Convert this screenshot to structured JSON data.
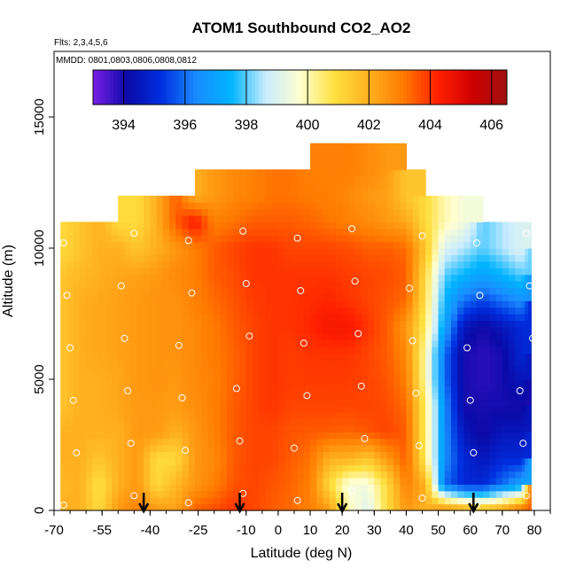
{
  "chart_data": {
    "type": "heatmap",
    "title": "ATOM1 Southbound CO2_AO2",
    "flights_label": "Flts: 2,3,4,5,6",
    "dates_label": "MMDD: 0801,0803,0806,0808,0812",
    "xlabel": "Latitude (deg N)",
    "ylabel": "Altitude (m)",
    "xlim": [
      -70,
      85
    ],
    "ylim": [
      0,
      17500
    ],
    "x_ticks": [
      -70,
      -55,
      -40,
      -25,
      -10,
      0,
      10,
      20,
      30,
      40,
      50,
      60,
      70,
      80
    ],
    "y_ticks": [
      0,
      5000,
      10000,
      15000
    ],
    "colorbar": {
      "min": 393,
      "max": 406.5,
      "ticks": [
        394,
        396,
        398,
        400,
        402,
        404,
        406
      ],
      "colors": [
        "#7a1fe6",
        "#0a0aa8",
        "#0030e0",
        "#1a8cff",
        "#00b4ff",
        "#c8ecff",
        "#ffffd0",
        "#ffe040",
        "#ffb020",
        "#ff7a00",
        "#ff2000",
        "#d00000",
        "#a01010"
      ]
    },
    "latitude_bands": [
      -68,
      -62,
      -56,
      -50,
      -44,
      -38,
      -32,
      -26,
      -20,
      -14,
      -8,
      -2,
      4,
      10,
      16,
      22,
      28,
      34,
      40,
      46,
      52,
      58,
      64,
      70,
      76,
      79
    ],
    "altitude_bands": [
      0,
      1000,
      2000,
      3000,
      4000,
      5000,
      6000,
      7000,
      8000,
      9000,
      10000,
      11000,
      12000,
      13000
    ],
    "co2_grid": [
      [
        402.0,
        402.0,
        401.0,
        402.5,
        403.0,
        402.5,
        402.3,
        403.5,
        403.7,
        404.0,
        403.8,
        403.5,
        403.3,
        403.0,
        402.5,
        400.0,
        399.0,
        401.0,
        402.5,
        402.0,
        403.0,
        402.5,
        402.0,
        402.5,
        403.5
      ],
      [
        401.8,
        402.0,
        400.8,
        402.0,
        402.5,
        401.0,
        401.8,
        402.5,
        403.0,
        403.6,
        403.8,
        403.6,
        403.4,
        403.0,
        401.0,
        399.5,
        399.5,
        401.0,
        403.0,
        402.0,
        396.0,
        395.0,
        395.0,
        396.0,
        397.0
      ],
      [
        402.0,
        402.0,
        401.5,
        402.0,
        402.5,
        401.0,
        401.0,
        402.5,
        402.8,
        403.5,
        403.8,
        403.8,
        403.5,
        403.2,
        402.0,
        402.0,
        401.5,
        402.5,
        403.5,
        400.5,
        396.5,
        395.0,
        394.5,
        395.0,
        395.0
      ],
      [
        402.0,
        402.0,
        402.0,
        402.0,
        402.5,
        402.5,
        402.0,
        402.5,
        403.0,
        403.5,
        403.8,
        403.8,
        403.6,
        403.5,
        403.5,
        403.4,
        403.6,
        403.8,
        403.5,
        400.5,
        396.5,
        394.5,
        394.0,
        394.5,
        394.5
      ],
      [
        401.5,
        402.0,
        402.0,
        402.2,
        402.5,
        402.5,
        402.4,
        402.7,
        403.0,
        403.5,
        403.8,
        404.0,
        403.8,
        403.8,
        403.8,
        403.8,
        403.8,
        403.7,
        403.3,
        400.5,
        396.5,
        394.0,
        394.0,
        394.0,
        394.0
      ],
      [
        401.5,
        402.0,
        402.0,
        402.2,
        402.5,
        402.6,
        402.5,
        402.8,
        403.0,
        403.4,
        403.8,
        404.0,
        403.9,
        403.9,
        403.9,
        403.9,
        403.8,
        403.6,
        403.0,
        400.0,
        396.0,
        394.0,
        393.8,
        394.0,
        394.5
      ],
      [
        401.5,
        402.0,
        402.2,
        402.3,
        402.5,
        402.6,
        402.6,
        402.8,
        403.1,
        403.4,
        403.8,
        404.0,
        403.9,
        404.0,
        404.0,
        404.0,
        403.8,
        403.5,
        402.8,
        400.0,
        396.0,
        394.0,
        393.8,
        394.0,
        395.0
      ],
      [
        401.5,
        402.0,
        402.2,
        402.3,
        402.5,
        402.6,
        402.6,
        402.8,
        403.1,
        403.5,
        403.8,
        404.0,
        404.0,
        404.2,
        404.5,
        404.5,
        404.0,
        403.5,
        402.5,
        400.5,
        397.0,
        394.5,
        394.0,
        394.5,
        395.0
      ],
      [
        401.5,
        402.0,
        402.2,
        402.3,
        402.5,
        402.6,
        402.6,
        403.0,
        403.3,
        403.6,
        403.9,
        404.0,
        404.0,
        404.1,
        404.2,
        404.0,
        403.8,
        403.6,
        403.3,
        400.8,
        397.5,
        396.0,
        395.5,
        396.0,
        396.5
      ],
      [
        401.5,
        401.8,
        402.0,
        402.2,
        402.3,
        402.5,
        402.8,
        403.0,
        403.5,
        403.7,
        404.0,
        404.0,
        404.0,
        404.0,
        404.0,
        403.9,
        403.8,
        403.7,
        403.5,
        401.0,
        398.0,
        397.5,
        397.0,
        397.5,
        398.0
      ],
      [
        401.0,
        401.5,
        402.0,
        402.0,
        401.5,
        402.0,
        402.5,
        403.0,
        403.5,
        403.8,
        404.0,
        404.0,
        403.8,
        403.8,
        403.8,
        403.7,
        403.5,
        403.5,
        403.3,
        401.5,
        399.0,
        398.5,
        398.0,
        398.5,
        399.0
      ],
      [
        0,
        0,
        0,
        401.0,
        401.0,
        402.0,
        403.5,
        404.5,
        403.0,
        403.2,
        403.5,
        403.5,
        403.5,
        403.4,
        403.2,
        403.0,
        402.8,
        402.5,
        402.2,
        401.0,
        400.0,
        399.5,
        0,
        0,
        0
      ],
      [
        0,
        0,
        0,
        0,
        0,
        0,
        0,
        402.0,
        402.5,
        402.8,
        403.0,
        403.2,
        403.2,
        403.1,
        403.0,
        402.8,
        402.5,
        402.3,
        401.5,
        0,
        0,
        0,
        0,
        0,
        0
      ],
      [
        0,
        0,
        0,
        0,
        0,
        0,
        0,
        0,
        0,
        0,
        0,
        0,
        0,
        403.0,
        403.0,
        403.0,
        402.8,
        402.5,
        0,
        0,
        0,
        0,
        0,
        0,
        0
      ]
    ],
    "descent_markers_latitude": [
      -42,
      -12,
      20,
      61
    ]
  }
}
